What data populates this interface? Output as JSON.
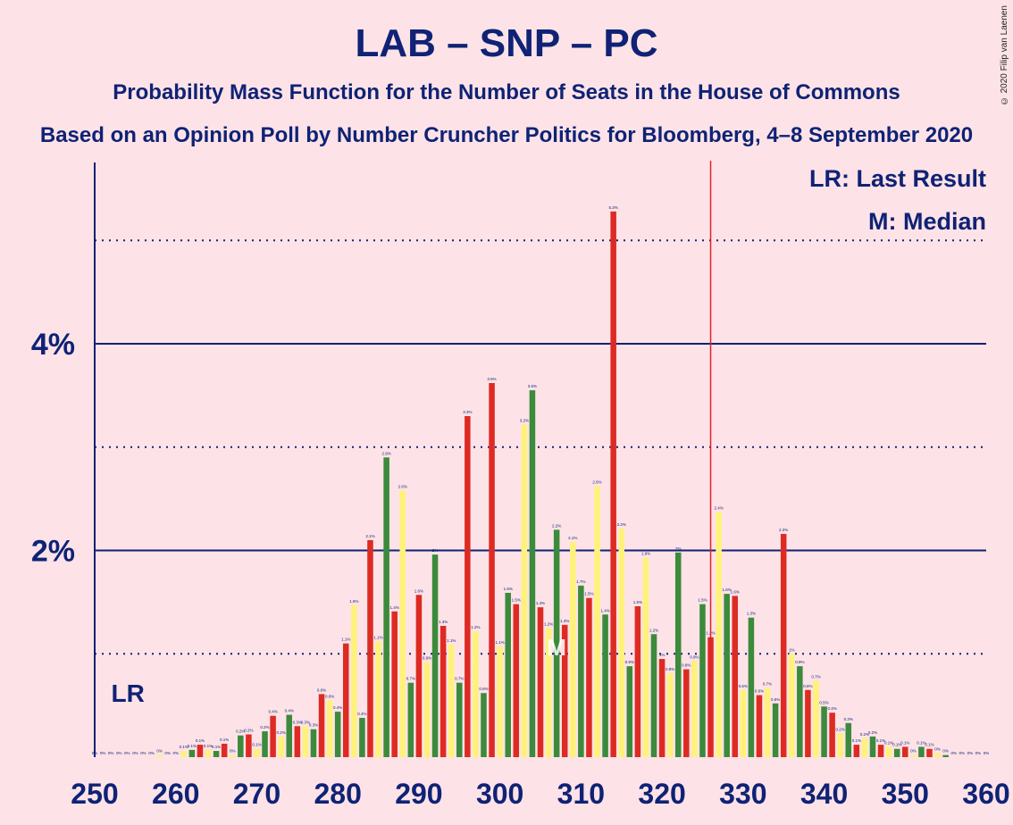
{
  "title": "LAB – SNP – PC",
  "subtitle": "Probability Mass Function for the Number of Seats in the House of Commons",
  "subtitle2": "Based on an Opinion Poll by Number Cruncher Politics for Bloomberg, 4–8 September 2020",
  "copyright": "© 2020 Filip van Laenen",
  "legend": {
    "lr": "LR: Last Result",
    "median": "M: Median"
  },
  "markers": {
    "lr_label": "LR",
    "median_label": "M"
  },
  "colors": {
    "background": "#fde3e7",
    "text": "#0f2275",
    "green": "#3c8a3c",
    "red": "#dd2b24",
    "yellow": "#fff27a",
    "majority_line": "#e0202a"
  },
  "chart_data": {
    "type": "bar",
    "xlim": [
      250,
      360
    ],
    "ylim": [
      0,
      5.75
    ],
    "x_ticks": [
      250,
      260,
      270,
      280,
      290,
      300,
      310,
      320,
      330,
      340,
      350,
      360
    ],
    "y_ticks_labeled": [
      {
        "value": 2,
        "label": "2%"
      },
      {
        "value": 4,
        "label": "4%"
      }
    ],
    "y_gridlines_dotted": [
      1,
      3,
      5
    ],
    "last_result": 253,
    "median": 307,
    "majority_line": 326,
    "series": {
      "seats": [
        250,
        251,
        252,
        253,
        254,
        255,
        256,
        257,
        258,
        259,
        260,
        261,
        262,
        263,
        264,
        265,
        266,
        267,
        268,
        269,
        270,
        271,
        272,
        273,
        274,
        275,
        276,
        277,
        278,
        279,
        280,
        281,
        282,
        283,
        284,
        285,
        286,
        287,
        288,
        289,
        290,
        291,
        292,
        293,
        294,
        295,
        296,
        297,
        298,
        299,
        300,
        301,
        302,
        303,
        304,
        305,
        306,
        307,
        308,
        309,
        310,
        311,
        312,
        313,
        314,
        315,
        316,
        317,
        318,
        319,
        320,
        321,
        322,
        323,
        324,
        325,
        326,
        327,
        328,
        329,
        330,
        331,
        332,
        333,
        334,
        335,
        336,
        337,
        338,
        339,
        340,
        341,
        342,
        343,
        344,
        345,
        346,
        347,
        348,
        349,
        350,
        351,
        352,
        353,
        354,
        355,
        356,
        357,
        358,
        359,
        360
      ],
      "values": [
        0,
        0,
        0,
        0,
        0,
        0,
        0,
        0,
        0.02,
        0,
        0,
        0.06,
        0.07,
        0.12,
        0.07,
        0.06,
        0.13,
        0.02,
        0.21,
        0.22,
        0.08,
        0.25,
        0.4,
        0.2,
        0.41,
        0.3,
        0.3,
        0.27,
        0.61,
        0.55,
        0.44,
        1.1,
        1.47,
        0.38,
        2.1,
        1.12,
        2.9,
        1.41,
        2.58,
        0.72,
        1.57,
        0.92,
        1.96,
        1.27,
        1.09,
        0.72,
        3.3,
        1.22,
        0.62,
        3.62,
        1.07,
        1.59,
        1.48,
        3.22,
        3.55,
        1.45,
        1.25,
        2.2,
        1.28,
        2.08,
        1.66,
        1.54,
        2.62,
        1.38,
        5.28,
        2.21,
        0.88,
        1.46,
        1.93,
        1.19,
        0.95,
        0.81,
        1.98,
        0.85,
        0.93,
        1.48,
        1.16,
        2.37,
        1.58,
        1.56,
        0.65,
        1.35,
        0.6,
        0.67,
        0.52,
        2.16,
        1,
        0.88,
        0.65,
        0.74,
        0.49,
        0.43,
        0.23,
        0.33,
        0.12,
        0.18,
        0.2,
        0.12,
        0.1,
        0.08,
        0.1,
        0.02,
        0.1,
        0.08,
        0.04,
        0.02,
        0,
        0,
        0,
        0,
        0
      ],
      "labels": [
        "0%",
        "0%",
        "0%",
        "0%",
        "0%",
        "0%",
        "0%",
        "0%",
        "0%",
        "0%",
        "0%",
        "0.1%",
        "0.1%",
        "0.1%",
        "0.1%",
        "0.1%",
        "0.1%",
        "0%",
        "0.2%",
        "0.2%",
        "0.1%",
        "0.2%",
        "0.4%",
        "0.2%",
        "0.4%",
        "0.3%",
        "0.3%",
        "0.3%",
        "0.6%",
        "0.6%",
        "0.4%",
        "1.1%",
        "1.5%",
        "0.4%",
        "2.1%",
        "1.1%",
        "2.9%",
        "1.4%",
        "2.6%",
        "0.7%",
        "1.6%",
        "0.9%",
        "2%",
        "1.3%",
        "1.1%",
        "0.7%",
        "3.3%",
        "1.2%",
        "0.6%",
        "3.6%",
        "1.1%",
        "1.6%",
        "1.5%",
        "3.2%",
        "3.6%",
        "1.4%",
        "1.2%",
        "2.2%",
        "1.3%",
        "2.1%",
        "1.7%",
        "1.5%",
        "2.6%",
        "1.4%",
        "5.3%",
        "2.2%",
        "0.9%",
        "1.5%",
        "1.9%",
        "1.2%",
        "1%",
        "0.8%",
        "2%",
        "0.8%",
        "0.9%",
        "1.5%",
        "1.2%",
        "2.4%",
        "1.6%",
        "1.6%",
        "0.6%",
        "1.3%",
        "0.6%",
        "0.7%",
        "0.5%",
        "2.2%",
        "1%",
        "0.9%",
        "0.6%",
        "0.7%",
        "0.5%",
        "0.4%",
        "0.2%",
        "0.3%",
        "0.1%",
        "0.2%",
        "0.2%",
        "0.1%",
        "0.1%",
        "0.1%",
        "0.1%",
        "0%",
        "0.1%",
        "0.1%",
        "0%",
        "0%",
        "0%",
        "0%",
        "0%",
        "0%",
        "0%"
      ]
    }
  }
}
